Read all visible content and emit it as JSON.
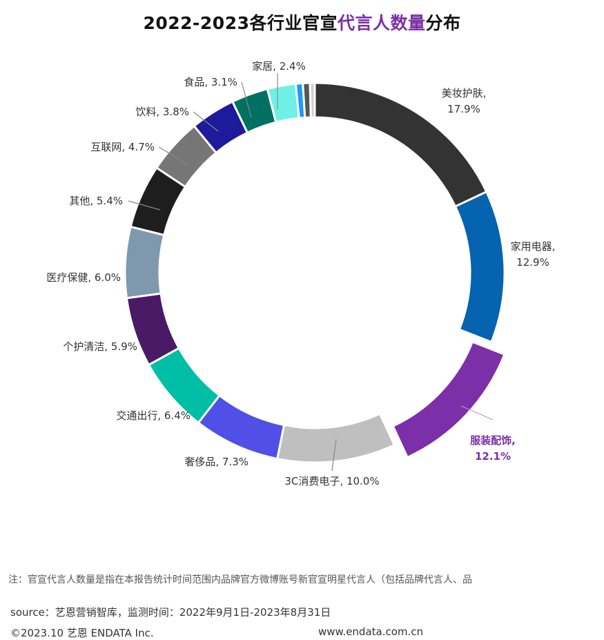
{
  "title": {
    "prefix": "2022-2023各行业官宣",
    "highlight": "代言人数量",
    "suffix": "分布"
  },
  "colors": {
    "title_highlight": "#7B2FA8",
    "highlight_label": "#7B2FA8",
    "label_text": "#333333",
    "leader_line": "#888888"
  },
  "chart_data": {
    "type": "pie",
    "donut": true,
    "exploded_slice": "服装配饰",
    "slices": [
      {
        "name": "美妆护肤",
        "value": 17.9,
        "label": "17.9%",
        "color": "#333333"
      },
      {
        "name": "家用电器",
        "value": 12.9,
        "label": "12.9%",
        "color": "#0563B0"
      },
      {
        "name": "服装配饰",
        "value": 12.1,
        "label": "12.1%",
        "color": "#7B2FA8",
        "highlight": true
      },
      {
        "name": "3C消费电子",
        "value": 10.0,
        "label": "10.0%",
        "color": "#BFBFBF"
      },
      {
        "name": "奢侈品",
        "value": 7.3,
        "label": "7.3%",
        "color": "#5050E6"
      },
      {
        "name": "交通出行",
        "value": 6.4,
        "label": "6.4%",
        "color": "#00BFA6"
      },
      {
        "name": "个护清洁",
        "value": 5.9,
        "label": "5.9%",
        "color": "#4A1A66"
      },
      {
        "name": "医疗保健",
        "value": 6.0,
        "label": "6.0%",
        "color": "#7E98AE"
      },
      {
        "name": "其他",
        "value": 5.4,
        "label": "5.4%",
        "color": "#1E1E1E"
      },
      {
        "name": "互联网",
        "value": 4.7,
        "label": "4.7%",
        "color": "#767676"
      },
      {
        "name": "饮料",
        "value": 3.8,
        "label": "3.8%",
        "color": "#1E1A9C"
      },
      {
        "name": "食品",
        "value": 3.1,
        "label": "3.1%",
        "color": "#007063"
      },
      {
        "name": "家居",
        "value": 2.4,
        "label": "2.4%",
        "color": "#6EF0E6"
      },
      {
        "name": "",
        "value": 0.6,
        "label": "",
        "color": "#1A9BFF"
      },
      {
        "name": "",
        "value": 0.6,
        "label": "",
        "color": "#555555"
      },
      {
        "name": "",
        "value": 0.4,
        "label": "",
        "color": "#CFCFCF"
      }
    ]
  },
  "footer": {
    "note": "注：官宣代言人数量是指在本报告统计时间范围内品牌官方微博账号新官宣明星代言人（包括品牌代言人、品",
    "source": "source：艺恩营销智库，监测时间：2022年9月1日-2023年8月31日",
    "copyright": "©2023.10  艺恩  ENDATA Inc.",
    "website": "www.endata.com.cn"
  }
}
